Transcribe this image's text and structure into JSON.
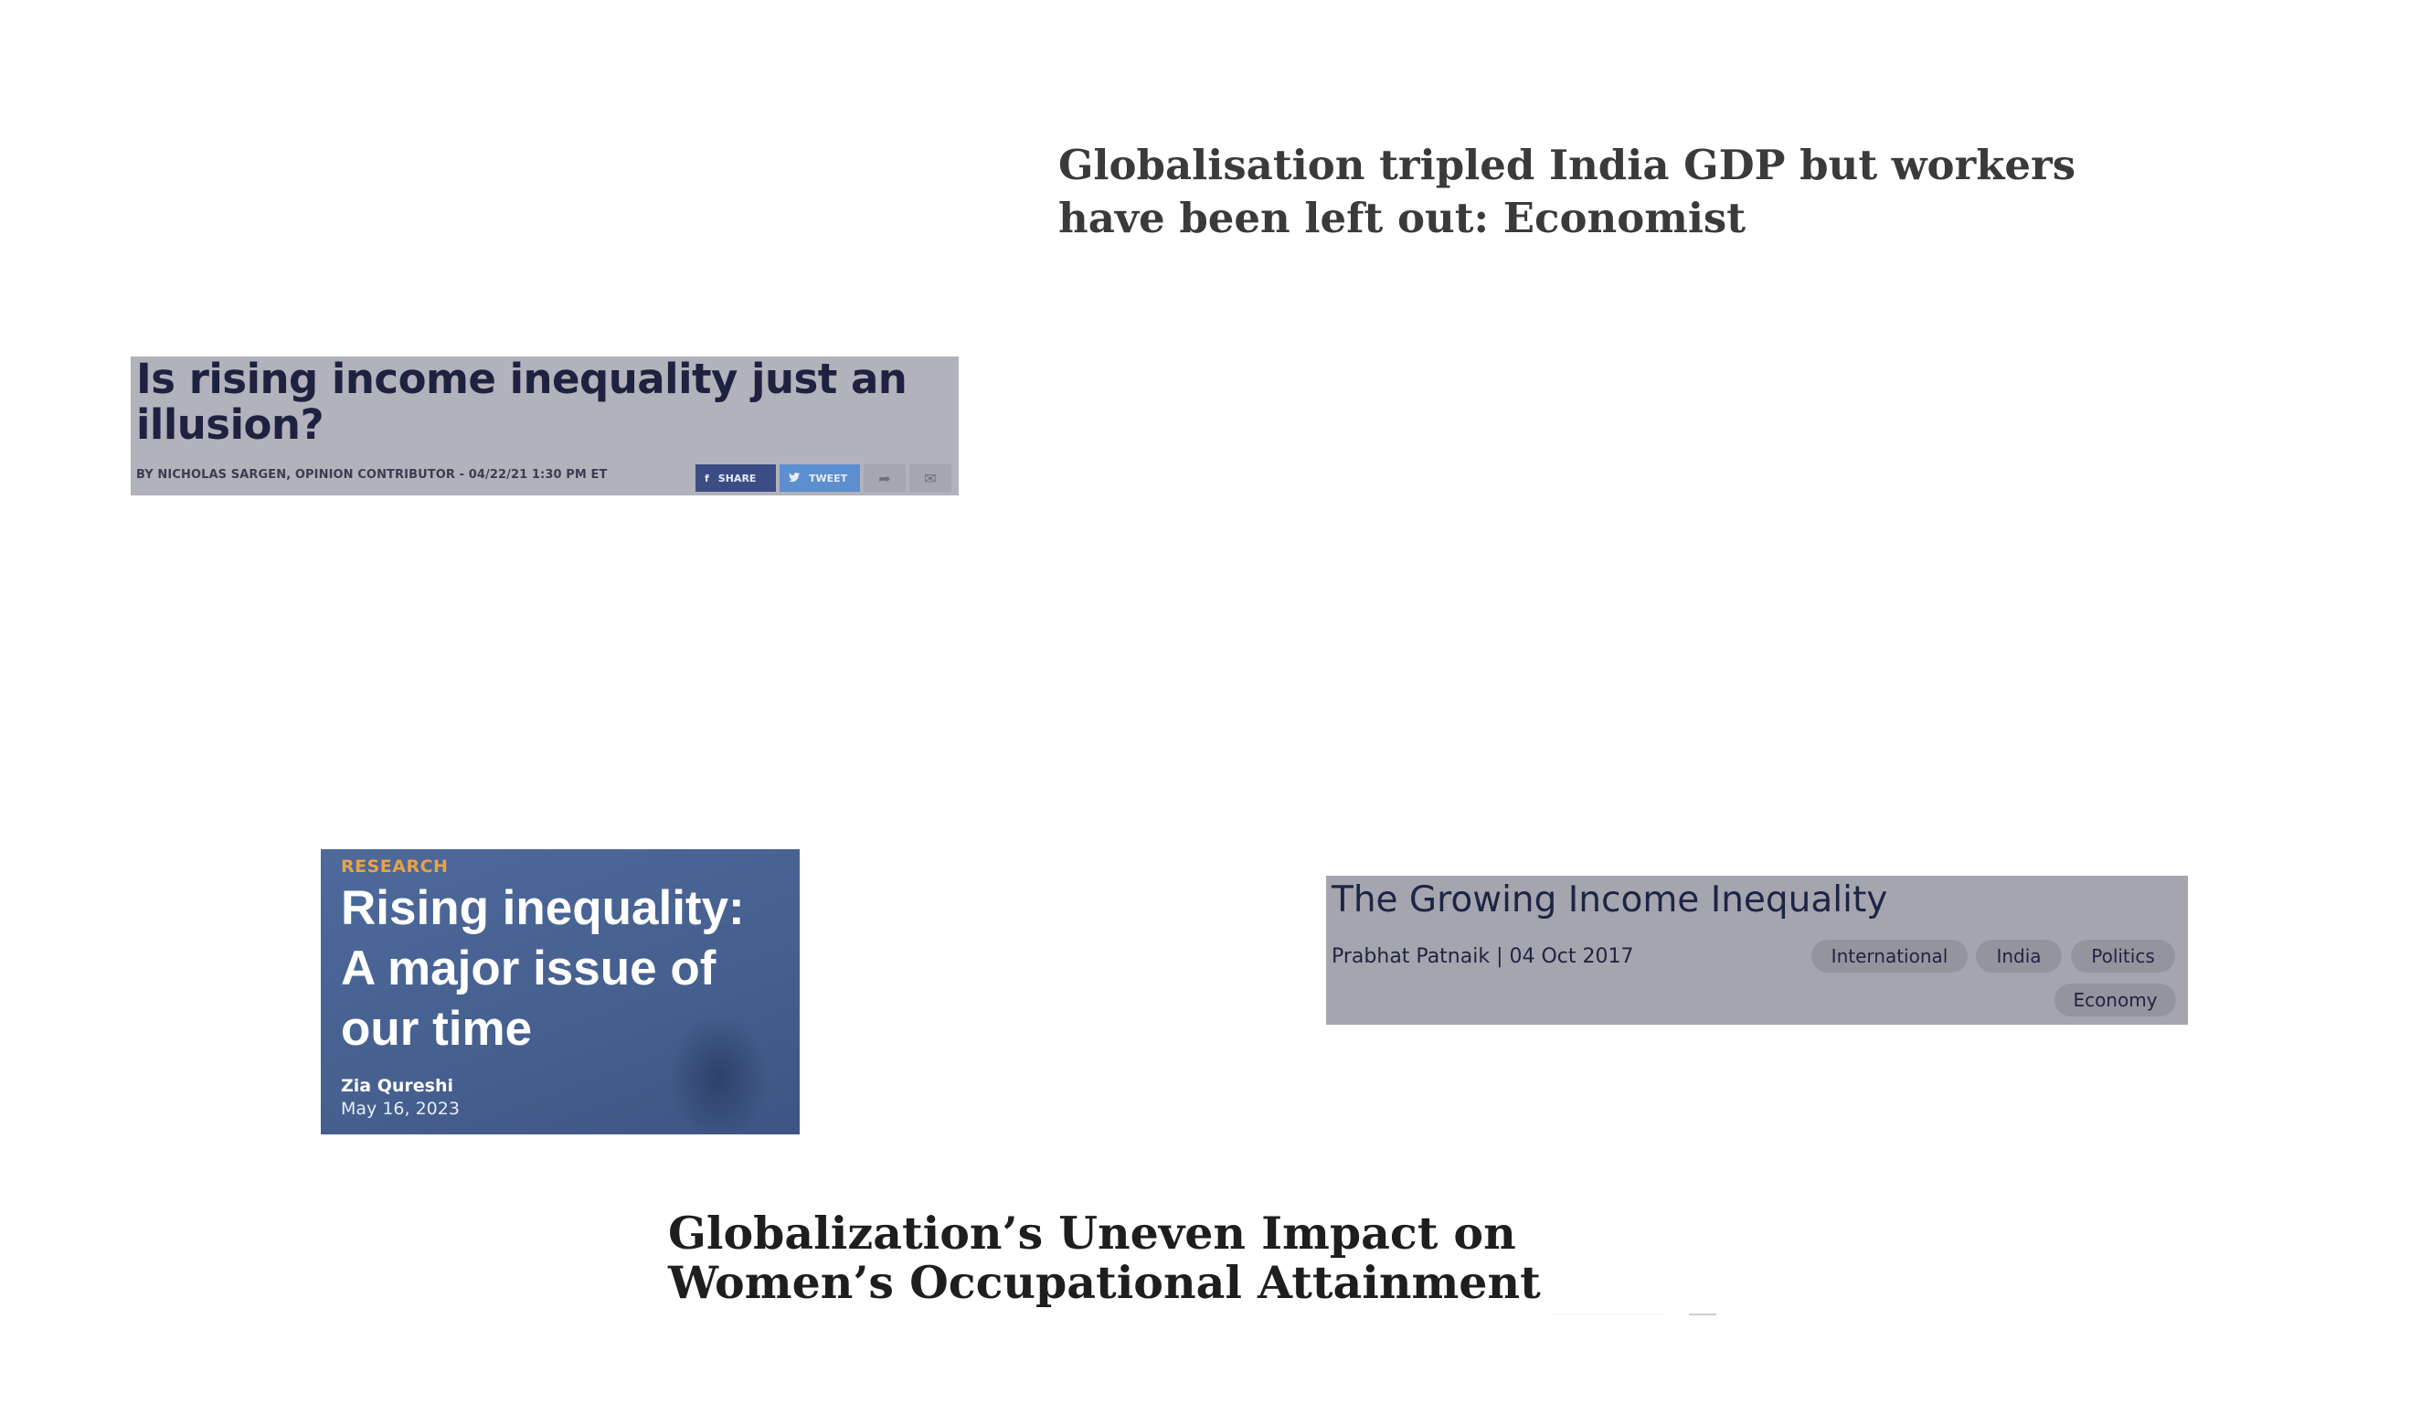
{
  "headline_economist": "Globalisation tripled India GDP but workers have been left out: Economist",
  "clip_illusion": {
    "title": "Is rising income inequality just an illusion?",
    "byline": "BY NICHOLAS SARGEN, OPINION CONTRIBUTOR - 04/22/21 1:30 PM ET",
    "share_label": "SHARE",
    "tweet_label": "TWEET",
    "icons": [
      "facebook-icon",
      "twitter-icon",
      "forward-icon",
      "mail-icon"
    ],
    "colors": {
      "background": "#b1b2bb",
      "share": "#3c4c84",
      "tweet": "#5b8fcf"
    }
  },
  "clip_research": {
    "tag": "RESEARCH",
    "title": "Rising inequality: A major issue of our time",
    "author": "Zia Qureshi",
    "date": "May 16, 2023",
    "colors": {
      "background": "#455f8e",
      "tag": "#e8a24a"
    }
  },
  "clip_growing": {
    "title": "The Growing Income Inequality",
    "meta": "Prabhat Patnaik | 04 Oct 2017",
    "tags": [
      "International",
      "India",
      "Politics",
      "Economy"
    ],
    "colors": {
      "background": "#a4a5ae"
    }
  },
  "headline_globalization": "Globalization’s Uneven Impact on Women’s Occupational Attainment"
}
